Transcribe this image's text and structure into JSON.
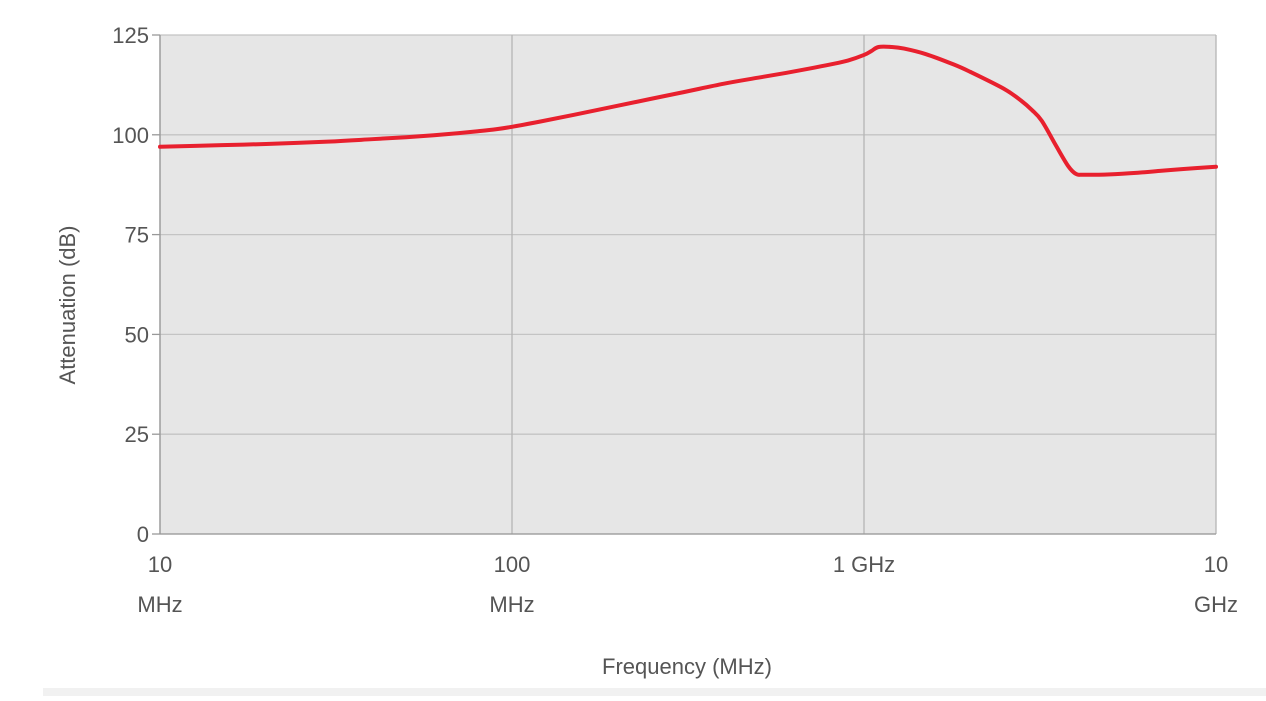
{
  "chart_data": {
    "type": "line",
    "xscale": "log",
    "xlim": [
      10,
      10000
    ],
    "ylim": [
      0,
      125
    ],
    "grid": true,
    "xlabel": "Frequency (MHz)",
    "ylabel": "Attenuation (dB)",
    "x_ticks": [
      {
        "value": 10,
        "line1": "10",
        "line2": "MHz"
      },
      {
        "value": 100,
        "line1": "100",
        "line2": "MHz"
      },
      {
        "value": 1000,
        "line1": "1 GHz",
        "line2": ""
      },
      {
        "value": 10000,
        "line1": "10",
        "line2": "GHz"
      }
    ],
    "y_ticks": [
      0,
      25,
      50,
      75,
      100,
      125
    ],
    "colors": {
      "plot_bg": "#e6e6e6",
      "grid": "#c4c4c4",
      "vgrid": "#b5b5b5",
      "line": "#e8202e"
    },
    "series": [
      {
        "x": [
          10,
          15,
          20,
          30,
          40,
          50,
          60,
          70,
          80,
          90,
          100,
          120,
          150,
          200,
          300,
          400,
          500,
          600,
          700,
          800,
          900,
          1000,
          1050,
          1100,
          1200,
          1300,
          1500,
          1800,
          2000,
          2500,
          2800,
          3000,
          3200,
          3500,
          3800,
          4000,
          4200,
          5000,
          6000,
          7000,
          8000,
          10000
        ],
        "y": [
          97,
          97.4,
          97.7,
          98.3,
          98.9,
          99.4,
          99.9,
          100.4,
          100.9,
          101.4,
          102,
          103.3,
          105,
          107.3,
          110.5,
          112.8,
          114.3,
          115.5,
          116.6,
          117.6,
          118.6,
          120,
          121,
          122,
          122,
          121.6,
          120.2,
          117.6,
          115.8,
          111.5,
          108.5,
          106.2,
          103.5,
          97.5,
          92.2,
          90.2,
          90,
          90.1,
          90.5,
          91,
          91.4,
          92
        ]
      }
    ]
  }
}
